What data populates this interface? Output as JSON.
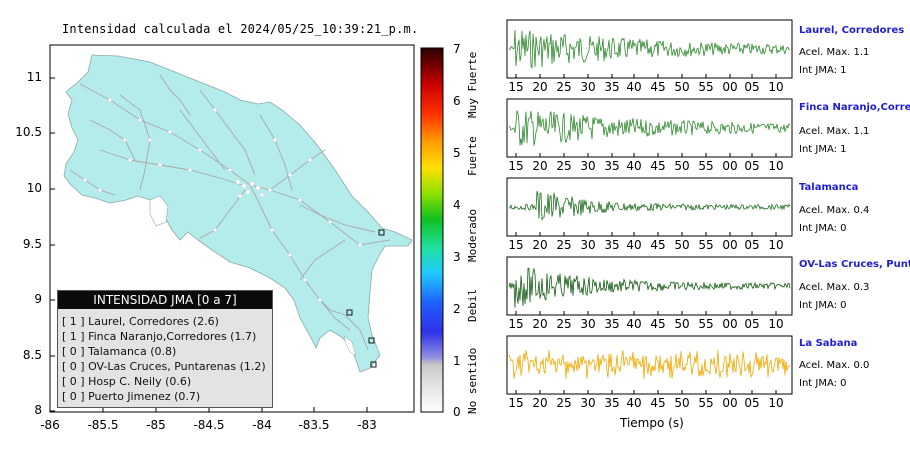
{
  "map": {
    "title": "Intensidad calculada el 2024/05/25_10:39:21_p.m.",
    "y_ticks": [
      "11",
      "10.5",
      "10",
      "9.5",
      "9",
      "8.5",
      "8"
    ],
    "x_ticks": [
      "-86",
      "-85.5",
      "-85",
      "-84.5",
      "-84",
      "-83.5",
      "-83"
    ],
    "land_color": "#b4ecec",
    "ocean_color": "#ffffff"
  },
  "colorbar": {
    "ticks": [
      "7",
      "6",
      "5",
      "4",
      "3",
      "2",
      "1",
      "0"
    ],
    "words": [
      "Muy Fuerte",
      "Fuerte",
      "Moderado",
      "Debil",
      "No sentido"
    ]
  },
  "legend": {
    "header": "INTENSIDAD JMA [0 a 7]",
    "rows": [
      "[ 1 ]  Laurel, Corredores (2.6)",
      "[ 1 ]  Finca Naranjo,Corredores (1.7)",
      "[ 0 ]  Talamanca (0.8)",
      "[ 0 ]  OV-Las Cruces, Puntarenas (1.2)",
      "[ 0 ]  Hosp C. Neily (0.6)",
      "[ 0 ]  Puerto Jimenez (0.7)"
    ]
  },
  "traces": [
    {
      "station": "Laurel, Corredores",
      "acel": "Acel. Max. 1.1",
      "int": "Int JMA: 1",
      "color": "#2f8a2f",
      "amp": 0.85,
      "decay": 0.08
    },
    {
      "station": "Finca Naranjo,Corredores",
      "acel": "Acel. Max. 1.1",
      "int": "Int JMA: 1",
      "color": "#2f8a2f",
      "amp": 0.8,
      "decay": 0.08
    },
    {
      "station": "Talamanca",
      "acel": "Acel. Max. 0.4",
      "int": "Int JMA: 0",
      "color": "#1e6e1e",
      "amp": 0.75,
      "decay": 0.22
    },
    {
      "station": "OV-Las Cruces, Puntarenas",
      "acel": "Acel. Max. 0.3",
      "int": "Int JMA: 0",
      "color": "#145c14",
      "amp": 0.85,
      "decay": 0.15
    },
    {
      "station": "La Sabana",
      "acel": "Acel. Max. 0.0",
      "int": "Int JMA: 0",
      "color": "#f2a800",
      "amp": 0.75,
      "decay": 0.0
    }
  ],
  "time_axis": {
    "ticks": [
      "15",
      "20",
      "25",
      "30",
      "35",
      "40",
      "45",
      "50",
      "55",
      "00",
      "05",
      "10"
    ],
    "label": "Tiempo (s)"
  }
}
